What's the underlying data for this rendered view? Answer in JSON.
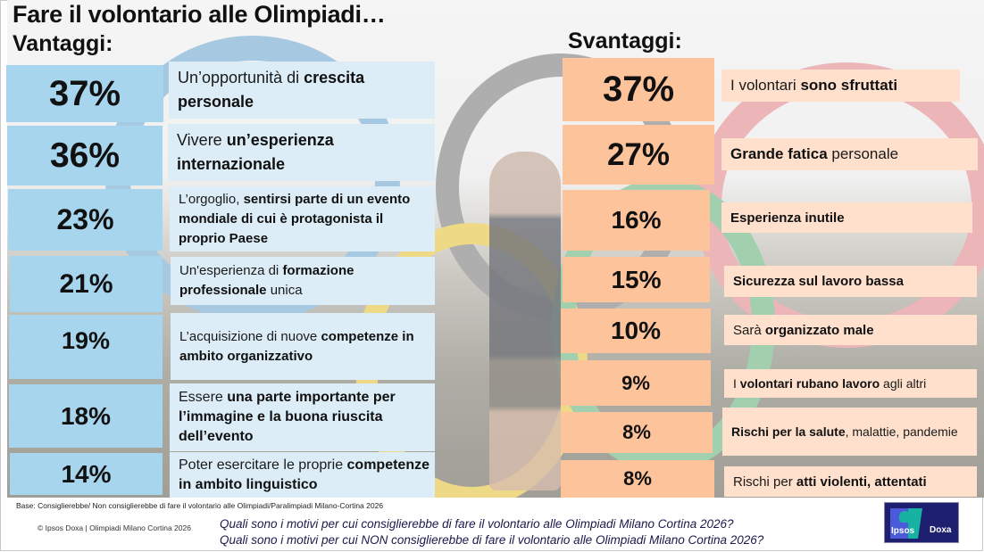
{
  "title": "Fare il volontario alle Olimpiadi…",
  "vantaggi_title": "Vantaggi:",
  "svantaggi_title": "Svantaggi:",
  "colors": {
    "vantaggi_pct_bg": "#a8d5ee",
    "vantaggi_label_bg": "#dcedf8",
    "svantaggi_pct_bg": "#fdc49c",
    "svantaggi_label_bg": "#fee0cd",
    "logo_bg": "#1e1f6e"
  },
  "vantaggi": [
    {
      "pct": "37%",
      "parts": [
        {
          "t": "Un’opportunità di ",
          "b": false
        },
        {
          "t": "crescita personale",
          "b": true
        }
      ]
    },
    {
      "pct": "36%",
      "parts": [
        {
          "t": "Vivere ",
          "b": false
        },
        {
          "t": "un’esperienza internazionale",
          "b": true
        }
      ]
    },
    {
      "pct": "23%",
      "parts": [
        {
          "t": "L’orgoglio, ",
          "b": false
        },
        {
          "t": "sentirsi parte di un evento mondiale di cui è protagonista il proprio Paese",
          "b": true
        }
      ]
    },
    {
      "pct": "21%",
      "parts": [
        {
          "t": "Un'esperienza di ",
          "b": false
        },
        {
          "t": "formazione professionale",
          "b": true
        },
        {
          "t": " unica",
          "b": false
        }
      ]
    },
    {
      "pct": "19%",
      "parts": [
        {
          "t": "L’acquisizione di nuove ",
          "b": false
        },
        {
          "t": "competenze in ambito organizzativo",
          "b": true
        }
      ]
    },
    {
      "pct": "18%",
      "parts": [
        {
          "t": "Essere ",
          "b": false
        },
        {
          "t": "una parte importante per l’immagine e la buona riuscita dell’evento",
          "b": true
        }
      ]
    },
    {
      "pct": "14%",
      "parts": [
        {
          "t": "Poter esercitare le proprie ",
          "b": false
        },
        {
          "t": "competenze in ambito linguistico",
          "b": true
        }
      ]
    }
  ],
  "svantaggi": [
    {
      "pct": "37%",
      "parts": [
        {
          "t": "I volontari ",
          "b": false
        },
        {
          "t": "sono sfruttati",
          "b": true
        }
      ]
    },
    {
      "pct": "27%",
      "parts": [
        {
          "t": "Grande fatica",
          "b": true
        },
        {
          "t": " personale",
          "b": false
        }
      ]
    },
    {
      "pct": "16%",
      "parts": [
        {
          "t": "Esperienza inutile",
          "b": true
        }
      ]
    },
    {
      "pct": "15%",
      "parts": [
        {
          "t": "Sicurezza sul lavoro bassa",
          "b": true
        }
      ]
    },
    {
      "pct": "10%",
      "parts": [
        {
          "t": "Sarà ",
          "b": false
        },
        {
          "t": "organizzato male",
          "b": true
        }
      ]
    },
    {
      "pct": "9%",
      "parts": [
        {
          "t": "I ",
          "b": false
        },
        {
          "t": "volontari rubano lavoro",
          "b": true
        },
        {
          "t": " agli altri",
          "b": false
        }
      ]
    },
    {
      "pct": "8%",
      "parts": [
        {
          "t": "Rischi per la salute",
          "b": true
        },
        {
          "t": ", malattie, pandemie",
          "b": false
        }
      ]
    },
    {
      "pct": "8%",
      "parts": [
        {
          "t": "Rischi per ",
          "b": false
        },
        {
          "t": "atti violenti, attentati",
          "b": true
        }
      ]
    }
  ],
  "footer": {
    "base_note": "Base: Consiglierebbe/ Non consiglierebbe di fare il volontario alle Olimpiadi/Paralimpiadi Milano-Cortina 2026",
    "copyright": "© Ipsos Doxa | Olimpiadi Milano Cortina 2026",
    "question_1": "Quali sono i motivi per cui consiglierebbe di fare il volontario alle Olimpiadi Milano Cortina 2026?",
    "question_2": "Quali sono i motivi per cui NON consiglierebbe di fare il volontario alle Olimpiadi Milano Cortina 2026?",
    "logo_left": "Ipsos",
    "logo_right": "Doxa"
  },
  "chart_data": [
    {
      "type": "table",
      "title": "Vantaggi",
      "categories": [
        "Un’opportunità di crescita personale",
        "Vivere un’esperienza internazionale",
        "L’orgoglio, sentirsi parte di un evento mondiale di cui è protagonista il proprio Paese",
        "Un'esperienza di formazione professionale unica",
        "L’acquisizione di nuove competenze in ambito organizzativo",
        "Essere una parte importante per l’immagine e la buona riuscita dell’evento",
        "Poter esercitare le proprie competenze in ambito linguistico"
      ],
      "values": [
        37,
        36,
        23,
        21,
        19,
        18,
        14
      ],
      "unit": "%"
    },
    {
      "type": "table",
      "title": "Svantaggi",
      "categories": [
        "I volontari sono sfruttati",
        "Grande fatica personale",
        "Esperienza inutile",
        "Sicurezza sul lavoro bassa",
        "Sarà organizzato male",
        "I volontari rubano lavoro agli altri",
        "Rischi per la salute, malattie, pandemie",
        "Rischi per atti violenti, attentati"
      ],
      "values": [
        37,
        27,
        16,
        15,
        10,
        9,
        8,
        8
      ],
      "unit": "%"
    }
  ]
}
